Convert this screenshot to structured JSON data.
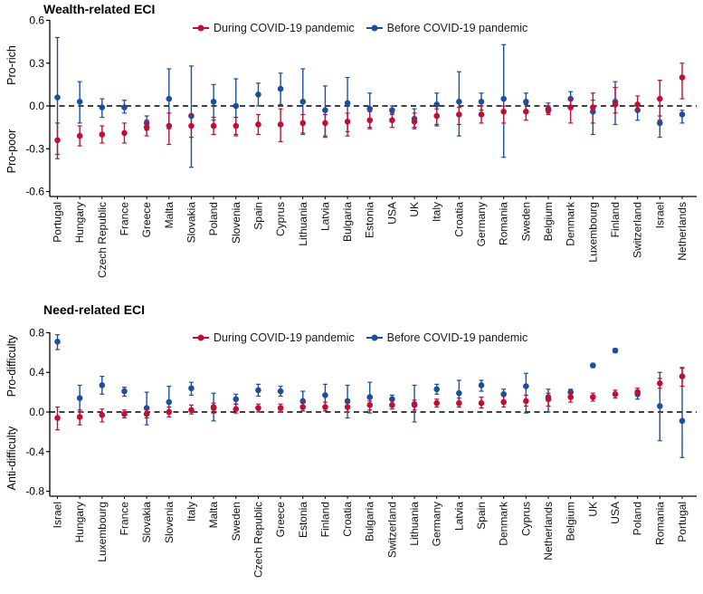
{
  "legend": {
    "during": "During COVID-19 pandemic",
    "before": "Before COVID-19 pandemic"
  },
  "colors": {
    "during": "#c00f35",
    "before": "#1b4f9e",
    "axis": "#000000"
  },
  "chart_data": [
    {
      "type": "errorbar",
      "title": "Wealth-related ECI",
      "ylabel_top": "Pro-rich",
      "ylabel_bottom": "Pro-poor",
      "ylim": [
        -0.6,
        0.6
      ],
      "yticks": [
        0.6,
        0.3,
        0.0,
        -0.3,
        -0.6
      ],
      "grid": false,
      "legend_position": "top-center",
      "zero_line": "dashed",
      "categories": [
        "Portugal",
        "Hungary",
        "Czech Republic",
        "France",
        "Greece",
        "Malta",
        "Slovakia",
        "Poland",
        "Slovenia",
        "Spain",
        "Cyprus",
        "Lithuania",
        "Latvia",
        "Bulgaria",
        "Estonia",
        "USA",
        "UK",
        "Italy",
        "Croatia",
        "Germany",
        "Romania",
        "Sweden",
        "Belgium",
        "Denmark",
        "Luxembourg",
        "Finland",
        "Switzerland",
        "Israel",
        "Netherlands"
      ],
      "series": [
        {
          "name": "During COVID-19 pandemic",
          "color": "#c00f35",
          "points": [
            [
              -0.24,
              -0.34,
              -0.12
            ],
            [
              -0.21,
              -0.28,
              -0.14
            ],
            [
              -0.2,
              -0.26,
              -0.14
            ],
            [
              -0.19,
              -0.26,
              -0.12
            ],
            [
              -0.15,
              -0.21,
              -0.1
            ],
            [
              -0.14,
              -0.27,
              -0.05
            ],
            [
              -0.14,
              -0.22,
              -0.06
            ],
            [
              -0.14,
              -0.2,
              -0.08
            ],
            [
              -0.14,
              -0.21,
              -0.08
            ],
            [
              -0.13,
              -0.2,
              -0.06
            ],
            [
              -0.13,
              -0.25,
              -0.02
            ],
            [
              -0.12,
              -0.19,
              -0.06
            ],
            [
              -0.12,
              -0.22,
              -0.06
            ],
            [
              -0.11,
              -0.21,
              -0.05
            ],
            [
              -0.1,
              -0.16,
              -0.04
            ],
            [
              -0.1,
              -0.15,
              -0.05
            ],
            [
              -0.11,
              -0.15,
              -0.05
            ],
            [
              -0.07,
              -0.13,
              -0.02
            ],
            [
              -0.06,
              -0.13,
              -0.01
            ],
            [
              -0.06,
              -0.12,
              0.0
            ],
            [
              -0.04,
              -0.12,
              0.0
            ],
            [
              -0.04,
              -0.1,
              0.01
            ],
            [
              -0.03,
              -0.06,
              0.0
            ],
            [
              -0.01,
              -0.12,
              0.04
            ],
            [
              -0.01,
              -0.12,
              0.09
            ],
            [
              0.01,
              -0.05,
              0.13
            ],
            [
              0.01,
              -0.04,
              0.07
            ],
            [
              0.05,
              -0.1,
              0.18
            ],
            [
              0.2,
              0.05,
              0.3
            ]
          ]
        },
        {
          "name": "Before COVID-19 pandemic",
          "color": "#1b4f9e",
          "points": [
            [
              0.06,
              -0.37,
              0.48
            ],
            [
              0.03,
              -0.12,
              0.17
            ],
            [
              -0.01,
              -0.08,
              0.05
            ],
            [
              -0.01,
              -0.05,
              0.04
            ],
            [
              -0.12,
              -0.17,
              -0.07
            ],
            [
              0.05,
              -0.16,
              0.26
            ],
            [
              -0.07,
              -0.43,
              0.28
            ],
            [
              0.03,
              -0.1,
              0.15
            ],
            [
              0.0,
              -0.2,
              0.19
            ],
            [
              0.08,
              0.0,
              0.16
            ],
            [
              0.12,
              0.01,
              0.23
            ],
            [
              0.03,
              -0.2,
              0.26
            ],
            [
              -0.03,
              -0.21,
              0.14
            ],
            [
              0.02,
              -0.18,
              0.2
            ],
            [
              -0.02,
              -0.15,
              0.09
            ],
            [
              -0.03,
              -0.06,
              0.0
            ],
            [
              -0.09,
              -0.16,
              -0.02
            ],
            [
              0.01,
              -0.14,
              0.09
            ],
            [
              0.03,
              -0.21,
              0.24
            ],
            [
              0.03,
              -0.03,
              0.09
            ],
            [
              0.05,
              -0.36,
              0.43
            ],
            [
              0.03,
              -0.04,
              0.09
            ],
            [
              -0.02,
              -0.05,
              0.02
            ],
            [
              0.05,
              0.0,
              0.1
            ],
            [
              -0.04,
              -0.2,
              0.04
            ],
            [
              0.03,
              -0.13,
              0.17
            ],
            [
              -0.03,
              -0.1,
              0.01
            ],
            [
              -0.12,
              -0.22,
              -0.07
            ],
            [
              -0.06,
              -0.12,
              -0.03
            ]
          ]
        }
      ]
    },
    {
      "type": "errorbar",
      "title": "Need-related ECI",
      "ylabel_top": "Pro-difficulty",
      "ylabel_bottom": "Anti-difficulty",
      "ylim": [
        -0.8,
        0.8
      ],
      "yticks": [
        0.8,
        0.4,
        0.0,
        -0.4,
        -0.8
      ],
      "grid": false,
      "legend_position": "top-center",
      "zero_line": "dashed",
      "categories": [
        "Israel",
        "Hungary",
        "Luxembourg",
        "France",
        "Slovakia",
        "Slovenia",
        "Italy",
        "Malta",
        "Sweden",
        "Czech Republic",
        "Greece",
        "Estonia",
        "Finland",
        "Croatia",
        "Bulgaria",
        "Switzerland",
        "Lithuania",
        "Germany",
        "Latvia",
        "Spain",
        "Denmark",
        "Cyprus",
        "Netherlands",
        "Belgium",
        "UK",
        "USA",
        "Poland",
        "Romania",
        "Portugal"
      ],
      "series": [
        {
          "name": "During COVID-19 pandemic",
          "color": "#c00f35",
          "points": [
            [
              -0.06,
              -0.18,
              0.05
            ],
            [
              -0.05,
              -0.13,
              0.02
            ],
            [
              -0.03,
              -0.1,
              0.03
            ],
            [
              -0.02,
              -0.06,
              0.02
            ],
            [
              -0.02,
              -0.06,
              0.03
            ],
            [
              0.0,
              -0.05,
              0.05
            ],
            [
              0.02,
              -0.02,
              0.07
            ],
            [
              0.04,
              -0.01,
              0.09
            ],
            [
              0.03,
              -0.01,
              0.08
            ],
            [
              0.04,
              0.0,
              0.08
            ],
            [
              0.04,
              0.0,
              0.08
            ],
            [
              0.05,
              0.01,
              0.09
            ],
            [
              0.05,
              0.01,
              0.1
            ],
            [
              0.05,
              0.0,
              0.09
            ],
            [
              0.07,
              0.02,
              0.11
            ],
            [
              0.07,
              0.03,
              0.11
            ],
            [
              0.07,
              0.02,
              0.12
            ],
            [
              0.09,
              0.05,
              0.13
            ],
            [
              0.09,
              0.05,
              0.14
            ],
            [
              0.09,
              0.04,
              0.15
            ],
            [
              0.1,
              0.05,
              0.16
            ],
            [
              0.11,
              0.06,
              0.17
            ],
            [
              0.13,
              0.06,
              0.19
            ],
            [
              0.15,
              0.1,
              0.2
            ],
            [
              0.15,
              0.11,
              0.19
            ],
            [
              0.18,
              0.14,
              0.22
            ],
            [
              0.2,
              0.16,
              0.24
            ],
            [
              0.29,
              0.24,
              0.34
            ],
            [
              0.36,
              0.26,
              0.44
            ]
          ]
        },
        {
          "name": "Before COVID-19 pandemic",
          "color": "#1b4f9e",
          "points": [
            [
              0.71,
              0.63,
              0.78
            ],
            [
              0.14,
              0.0,
              0.27
            ],
            [
              0.27,
              0.18,
              0.36
            ],
            [
              0.21,
              0.16,
              0.25
            ],
            [
              0.04,
              -0.13,
              0.2
            ],
            [
              0.1,
              0.0,
              0.26
            ],
            [
              0.24,
              0.17,
              0.3
            ],
            [
              0.05,
              -0.09,
              0.19
            ],
            [
              0.13,
              0.08,
              0.18
            ],
            [
              0.22,
              0.16,
              0.28
            ],
            [
              0.21,
              0.16,
              0.26
            ],
            [
              0.11,
              0.01,
              0.21
            ],
            [
              0.17,
              0.01,
              0.28
            ],
            [
              0.11,
              -0.06,
              0.27
            ],
            [
              0.15,
              -0.01,
              0.3
            ],
            [
              0.13,
              0.08,
              0.17
            ],
            [
              0.08,
              -0.1,
              0.27
            ],
            [
              0.23,
              0.18,
              0.28
            ],
            [
              0.19,
              0.05,
              0.32
            ],
            [
              0.27,
              0.21,
              0.32
            ],
            [
              0.18,
              0.12,
              0.23
            ],
            [
              0.26,
              -0.01,
              0.39
            ],
            [
              0.15,
              0.0,
              0.23
            ],
            [
              0.2,
              0.16,
              0.23
            ],
            [
              0.47,
              0.45,
              0.49
            ],
            [
              0.62,
              0.6,
              0.64
            ],
            [
              0.18,
              0.13,
              0.22
            ],
            [
              0.06,
              -0.29,
              0.4
            ],
            [
              -0.09,
              -0.46,
              0.45
            ]
          ]
        }
      ]
    }
  ]
}
